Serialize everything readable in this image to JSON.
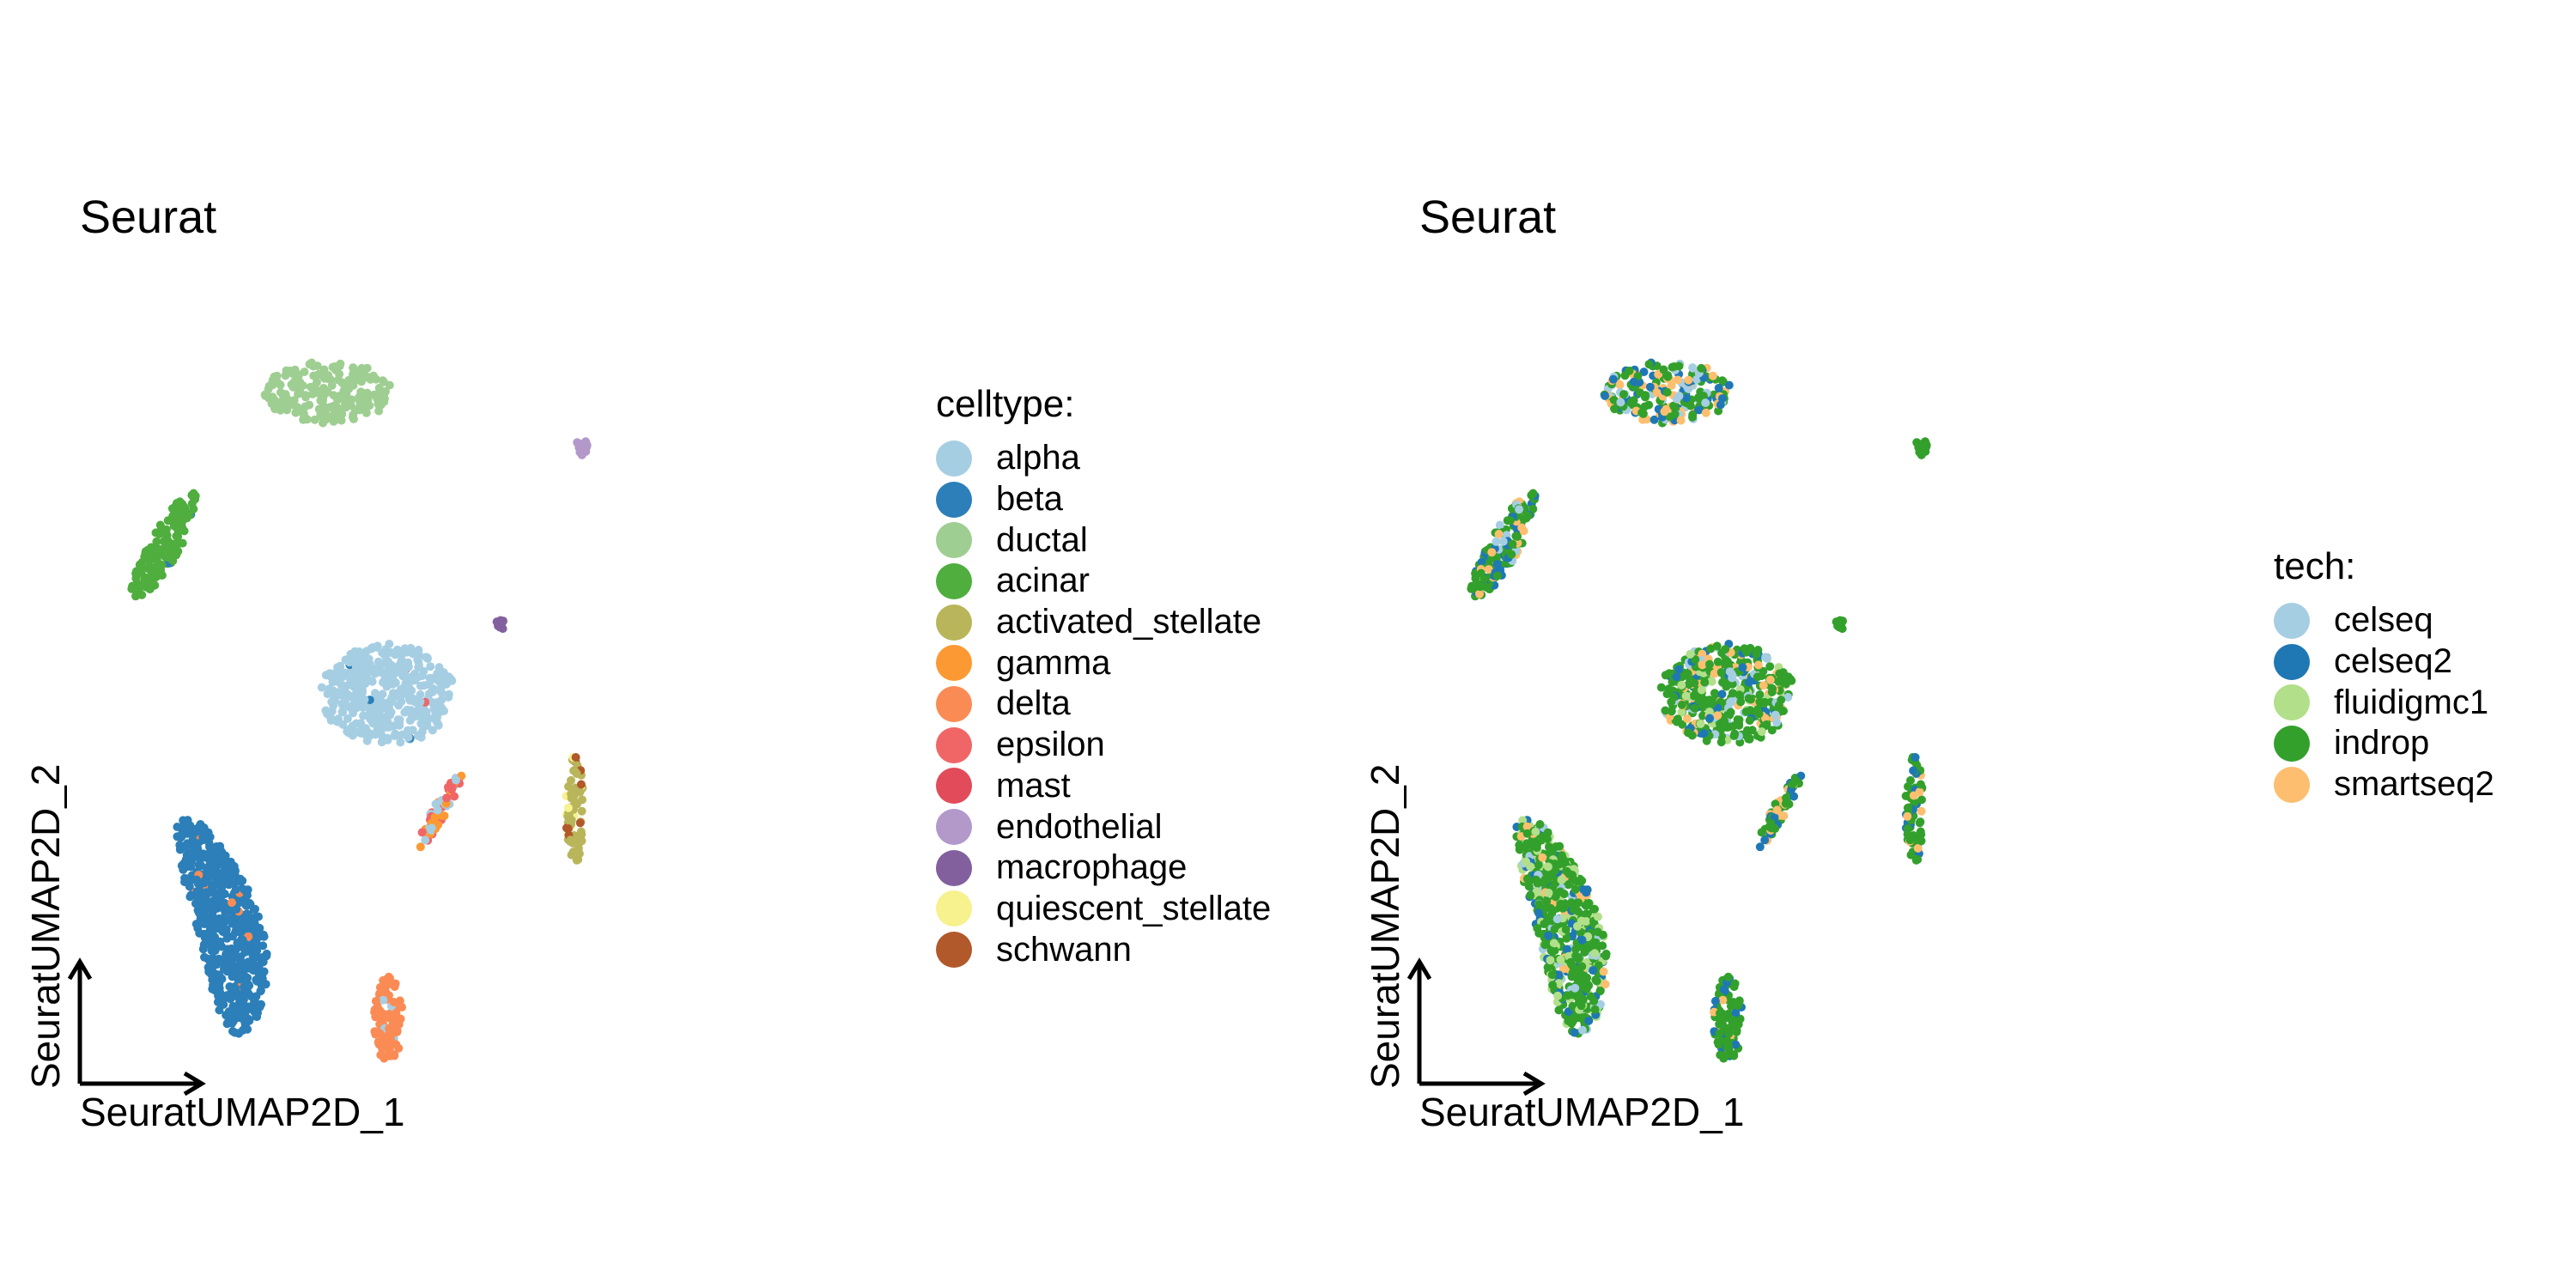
{
  "chart_data": [
    {
      "type": "scatter",
      "title": "Seurat",
      "xlabel": "SeuratUMAP2D_1",
      "ylabel": "SeuratUMAP2D_2",
      "legend_title": "celltype:",
      "legend_position": "right",
      "grid": false,
      "series": [
        {
          "name": "alpha",
          "color": "#A6CEE3"
        },
        {
          "name": "beta",
          "color": "#2C7FB8"
        },
        {
          "name": "ductal",
          "color": "#9ECE91"
        },
        {
          "name": "acinar",
          "color": "#4FAE3E"
        },
        {
          "name": "activated_stellate",
          "color": "#B9B55A"
        },
        {
          "name": "gamma",
          "color": "#FD9933"
        },
        {
          "name": "delta",
          "color": "#FB8B55"
        },
        {
          "name": "epsilon",
          "color": "#F06667"
        },
        {
          "name": "mast",
          "color": "#E14B5A"
        },
        {
          "name": "endothelial",
          "color": "#B299CA"
        },
        {
          "name": "macrophage",
          "color": "#82609E"
        },
        {
          "name": "quiescent_stellate",
          "color": "#F7F18E"
        },
        {
          "name": "schwann",
          "color": "#B1592B"
        }
      ],
      "clusters": [
        {
          "label": "ductal",
          "cx": 0.29,
          "cy": 0.87,
          "rx": 0.085,
          "ry": 0.04,
          "n": 220,
          "colors": {
            "ductal": 1
          }
        },
        {
          "label": "acinar",
          "cx": 0.07,
          "cy": 0.67,
          "rx": 0.05,
          "ry": 0.07,
          "n": 160,
          "shape": "slant",
          "colors": {
            "acinar": 0.98,
            "beta": 0.02
          }
        },
        {
          "label": "alpha",
          "cx": 0.37,
          "cy": 0.48,
          "rx": 0.09,
          "ry": 0.065,
          "n": 420,
          "colors": {
            "alpha": 0.97,
            "beta": 0.01,
            "epsilon": 0.02
          }
        },
        {
          "label": "alpha-tail",
          "cx": 0.44,
          "cy": 0.33,
          "rx": 0.03,
          "ry": 0.05,
          "n": 60,
          "shape": "tail",
          "colors": {
            "epsilon": 0.35,
            "alpha": 0.3,
            "gamma": 0.35
          }
        },
        {
          "label": "beta",
          "cx": 0.12,
          "cy": 0.18,
          "rx": 0.08,
          "ry": 0.14,
          "n": 600,
          "shape": "crescent",
          "colors": {
            "beta": 0.98,
            "delta": 0.02
          }
        },
        {
          "label": "delta",
          "cx": 0.37,
          "cy": 0.06,
          "rx": 0.02,
          "ry": 0.055,
          "n": 90,
          "colors": {
            "delta": 0.96,
            "alpha": 0.04
          }
        },
        {
          "label": "stellate",
          "cx": 0.62,
          "cy": 0.33,
          "rx": 0.012,
          "ry": 0.07,
          "n": 70,
          "colors": {
            "activated_stellate": 0.8,
            "quiescent_stellate": 0.12,
            "schwann": 0.08
          }
        },
        {
          "label": "endothelial",
          "cx": 0.63,
          "cy": 0.8,
          "rx": 0.008,
          "ry": 0.012,
          "n": 20,
          "colors": {
            "endothelial": 1
          }
        },
        {
          "label": "macrophage",
          "cx": 0.52,
          "cy": 0.57,
          "rx": 0.006,
          "ry": 0.008,
          "n": 12,
          "colors": {
            "macrophage": 1
          }
        }
      ]
    },
    {
      "type": "scatter",
      "title": "Seurat",
      "xlabel": "SeuratUMAP2D_1",
      "ylabel": "SeuratUMAP2D_2",
      "legend_title": "tech:",
      "legend_position": "right",
      "grid": false,
      "series": [
        {
          "name": "celseq",
          "color": "#A6CEE3"
        },
        {
          "name": "celseq2",
          "color": "#1F78B4"
        },
        {
          "name": "fluidigmc1",
          "color": "#B2DF8A"
        },
        {
          "name": "indrop",
          "color": "#33A02C"
        },
        {
          "name": "smartseq2",
          "color": "#FDBF6F"
        }
      ],
      "clusters": [
        {
          "label": "ductal",
          "cx": 0.29,
          "cy": 0.87,
          "rx": 0.085,
          "ry": 0.04,
          "n": 220,
          "colors": {
            "indrop": 0.45,
            "celseq2": 0.2,
            "smartseq2": 0.2,
            "celseq": 0.15
          }
        },
        {
          "label": "acinar",
          "cx": 0.07,
          "cy": 0.67,
          "rx": 0.05,
          "ry": 0.07,
          "n": 160,
          "shape": "slant",
          "colors": {
            "indrop": 0.55,
            "celseq2": 0.2,
            "smartseq2": 0.15,
            "celseq": 0.1
          }
        },
        {
          "label": "alpha",
          "cx": 0.37,
          "cy": 0.48,
          "rx": 0.09,
          "ry": 0.065,
          "n": 420,
          "colors": {
            "indrop": 0.55,
            "celseq": 0.15,
            "fluidigmc1": 0.1,
            "smartseq2": 0.12,
            "celseq2": 0.08
          }
        },
        {
          "label": "alpha-tail",
          "cx": 0.44,
          "cy": 0.33,
          "rx": 0.03,
          "ry": 0.05,
          "n": 60,
          "shape": "tail",
          "colors": {
            "indrop": 0.6,
            "celseq2": 0.2,
            "smartseq2": 0.2
          }
        },
        {
          "label": "beta",
          "cx": 0.12,
          "cy": 0.18,
          "rx": 0.08,
          "ry": 0.14,
          "n": 600,
          "shape": "crescent",
          "colors": {
            "indrop": 0.55,
            "fluidigmc1": 0.2,
            "celseq2": 0.12,
            "celseq": 0.08,
            "smartseq2": 0.05
          }
        },
        {
          "label": "delta",
          "cx": 0.37,
          "cy": 0.06,
          "rx": 0.02,
          "ry": 0.055,
          "n": 90,
          "colors": {
            "indrop": 0.75,
            "celseq2": 0.15,
            "smartseq2": 0.1
          }
        },
        {
          "label": "stellate",
          "cx": 0.62,
          "cy": 0.33,
          "rx": 0.012,
          "ry": 0.07,
          "n": 70,
          "colors": {
            "indrop": 0.7,
            "celseq2": 0.2,
            "smartseq2": 0.1
          }
        },
        {
          "label": "endothelial",
          "cx": 0.63,
          "cy": 0.8,
          "rx": 0.008,
          "ry": 0.012,
          "n": 20,
          "colors": {
            "indrop": 1
          }
        },
        {
          "label": "macrophage",
          "cx": 0.52,
          "cy": 0.57,
          "rx": 0.006,
          "ry": 0.008,
          "n": 12,
          "colors": {
            "indrop": 1
          }
        }
      ]
    }
  ]
}
